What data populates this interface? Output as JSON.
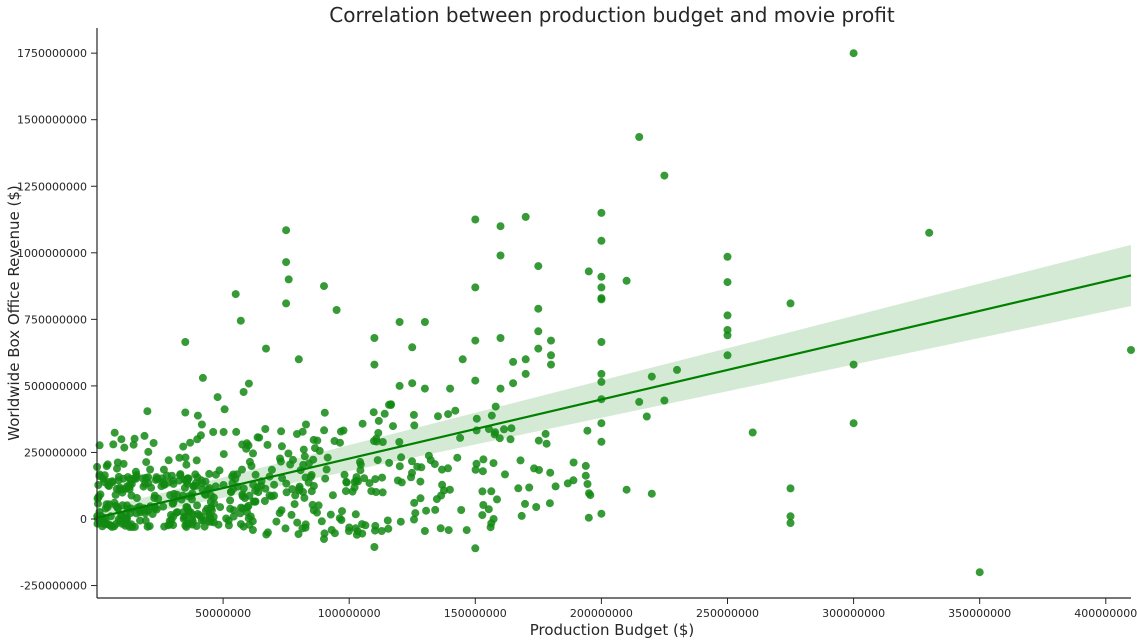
{
  "chart_data": {
    "type": "scatter",
    "title": "Correlation between production budget and movie profit",
    "xlabel": "Production Budget ($)",
    "ylabel": "Worldwide Box Office Revenue ($)",
    "xlim": [
      0,
      410000000
    ],
    "ylim": [
      -300000000,
      1850000000
    ],
    "x_ticks": [
      50000000,
      100000000,
      150000000,
      200000000,
      250000000,
      300000000,
      350000000,
      400000000
    ],
    "x_tick_labels": [
      "50000000",
      "100000000",
      "150000000",
      "200000000",
      "250000000",
      "300000000",
      "350000000",
      "400000000"
    ],
    "y_ticks": [
      -250000000,
      0,
      250000000,
      500000000,
      750000000,
      1000000000,
      1250000000,
      1500000000,
      1750000000
    ],
    "y_tick_labels": [
      "-250000000",
      "0",
      "250000000",
      "500000000",
      "750000000",
      "1000000000",
      "1250000000",
      "1500000000",
      "1750000000"
    ],
    "grid": false,
    "colors": {
      "points": "#138a13",
      "regression_line": "#008000",
      "confidence_band": "#d5ead5"
    },
    "regression": {
      "x": [
        0,
        410000000
      ],
      "y": [
        5000000,
        915000000
      ],
      "band_lower": [
        -20000000,
        800000000
      ],
      "band_upper": [
        35000000,
        1030000000
      ]
    },
    "highlight_points": [
      [
        300000000,
        1750000000
      ],
      [
        215000000,
        1435000000
      ],
      [
        225000000,
        1290000000
      ],
      [
        330000000,
        1075000000
      ],
      [
        410000000,
        635000000
      ],
      [
        350000000,
        -200000000
      ],
      [
        300000000,
        580000000
      ],
      [
        300000000,
        360000000
      ],
      [
        275000000,
        810000000
      ],
      [
        275000000,
        115000000
      ],
      [
        275000000,
        10000000
      ],
      [
        275000000,
        -15000000
      ],
      [
        260000000,
        325000000
      ],
      [
        250000000,
        985000000
      ],
      [
        250000000,
        890000000
      ],
      [
        250000000,
        765000000
      ],
      [
        250000000,
        710000000
      ],
      [
        250000000,
        690000000
      ],
      [
        250000000,
        615000000
      ],
      [
        200000000,
        1150000000
      ],
      [
        200000000,
        1045000000
      ],
      [
        200000000,
        910000000
      ],
      [
        200000000,
        870000000
      ],
      [
        200000000,
        830000000
      ],
      [
        200000000,
        825000000
      ],
      [
        200000000,
        665000000
      ],
      [
        200000000,
        545000000
      ],
      [
        200000000,
        515000000
      ],
      [
        200000000,
        450000000
      ],
      [
        200000000,
        360000000
      ],
      [
        200000000,
        290000000
      ],
      [
        200000000,
        20000000
      ],
      [
        210000000,
        895000000
      ],
      [
        210000000,
        110000000
      ],
      [
        220000000,
        95000000
      ],
      [
        220000000,
        535000000
      ],
      [
        230000000,
        560000000
      ],
      [
        225000000,
        445000000
      ],
      [
        215000000,
        440000000
      ],
      [
        218000000,
        385000000
      ],
      [
        195000000,
        930000000
      ],
      [
        195000000,
        5000000
      ],
      [
        170000000,
        1135000000
      ],
      [
        160000000,
        1100000000
      ],
      [
        160000000,
        990000000
      ],
      [
        175000000,
        950000000
      ],
      [
        150000000,
        1125000000
      ],
      [
        150000000,
        870000000
      ],
      [
        175000000,
        790000000
      ],
      [
        160000000,
        680000000
      ],
      [
        175000000,
        705000000
      ],
      [
        180000000,
        670000000
      ],
      [
        165000000,
        590000000
      ],
      [
        170000000,
        600000000
      ],
      [
        175000000,
        640000000
      ],
      [
        180000000,
        615000000
      ],
      [
        180000000,
        580000000
      ],
      [
        150000000,
        670000000
      ],
      [
        145000000,
        600000000
      ],
      [
        150000000,
        520000000
      ],
      [
        140000000,
        490000000
      ],
      [
        120000000,
        740000000
      ],
      [
        130000000,
        740000000
      ],
      [
        110000000,
        680000000
      ],
      [
        125000000,
        645000000
      ],
      [
        110000000,
        580000000
      ],
      [
        95000000,
        785000000
      ],
      [
        90000000,
        875000000
      ],
      [
        75000000,
        1085000000
      ],
      [
        75000000,
        965000000
      ],
      [
        76000000,
        900000000
      ],
      [
        75000000,
        810000000
      ],
      [
        55000000,
        845000000
      ],
      [
        57000000,
        745000000
      ],
      [
        67000000,
        640000000
      ],
      [
        35000000,
        665000000
      ],
      [
        42000000,
        530000000
      ],
      [
        80000000,
        600000000
      ],
      [
        110000000,
        -105000000
      ],
      [
        150000000,
        -110000000
      ],
      [
        130000000,
        -45000000
      ],
      [
        90000000,
        -75000000
      ],
      [
        20000000,
        405000000
      ],
      [
        35000000,
        400000000
      ],
      [
        120000000,
        500000000
      ],
      [
        125000000,
        510000000
      ],
      [
        130000000,
        490000000
      ],
      [
        160000000,
        490000000
      ],
      [
        165000000,
        510000000
      ],
      [
        170000000,
        545000000
      ]
    ],
    "cluster_regions": [
      {
        "x_range": [
          0,
          60000000
        ],
        "y_range": [
          -30000000,
          170000000
        ],
        "count": 230
      },
      {
        "x_range": [
          0,
          30000000
        ],
        "y_range": [
          150000000,
          330000000
        ],
        "count": 30
      },
      {
        "x_range": [
          30000000,
          80000000
        ],
        "y_range": [
          100000000,
          330000000
        ],
        "count": 45
      },
      {
        "x_range": [
          60000000,
          110000000
        ],
        "y_range": [
          -60000000,
          250000000
        ],
        "count": 80
      },
      {
        "x_range": [
          80000000,
          130000000
        ],
        "y_range": [
          100000000,
          450000000
        ],
        "count": 45
      },
      {
        "x_range": [
          110000000,
          160000000
        ],
        "y_range": [
          -50000000,
          450000000
        ],
        "count": 55
      },
      {
        "x_range": [
          150000000,
          200000000
        ],
        "y_range": [
          0,
          420000000
        ],
        "count": 40
      },
      {
        "x_range": [
          40000000,
          80000000
        ],
        "y_range": [
          300000000,
          520000000
        ],
        "count": 12
      }
    ]
  }
}
